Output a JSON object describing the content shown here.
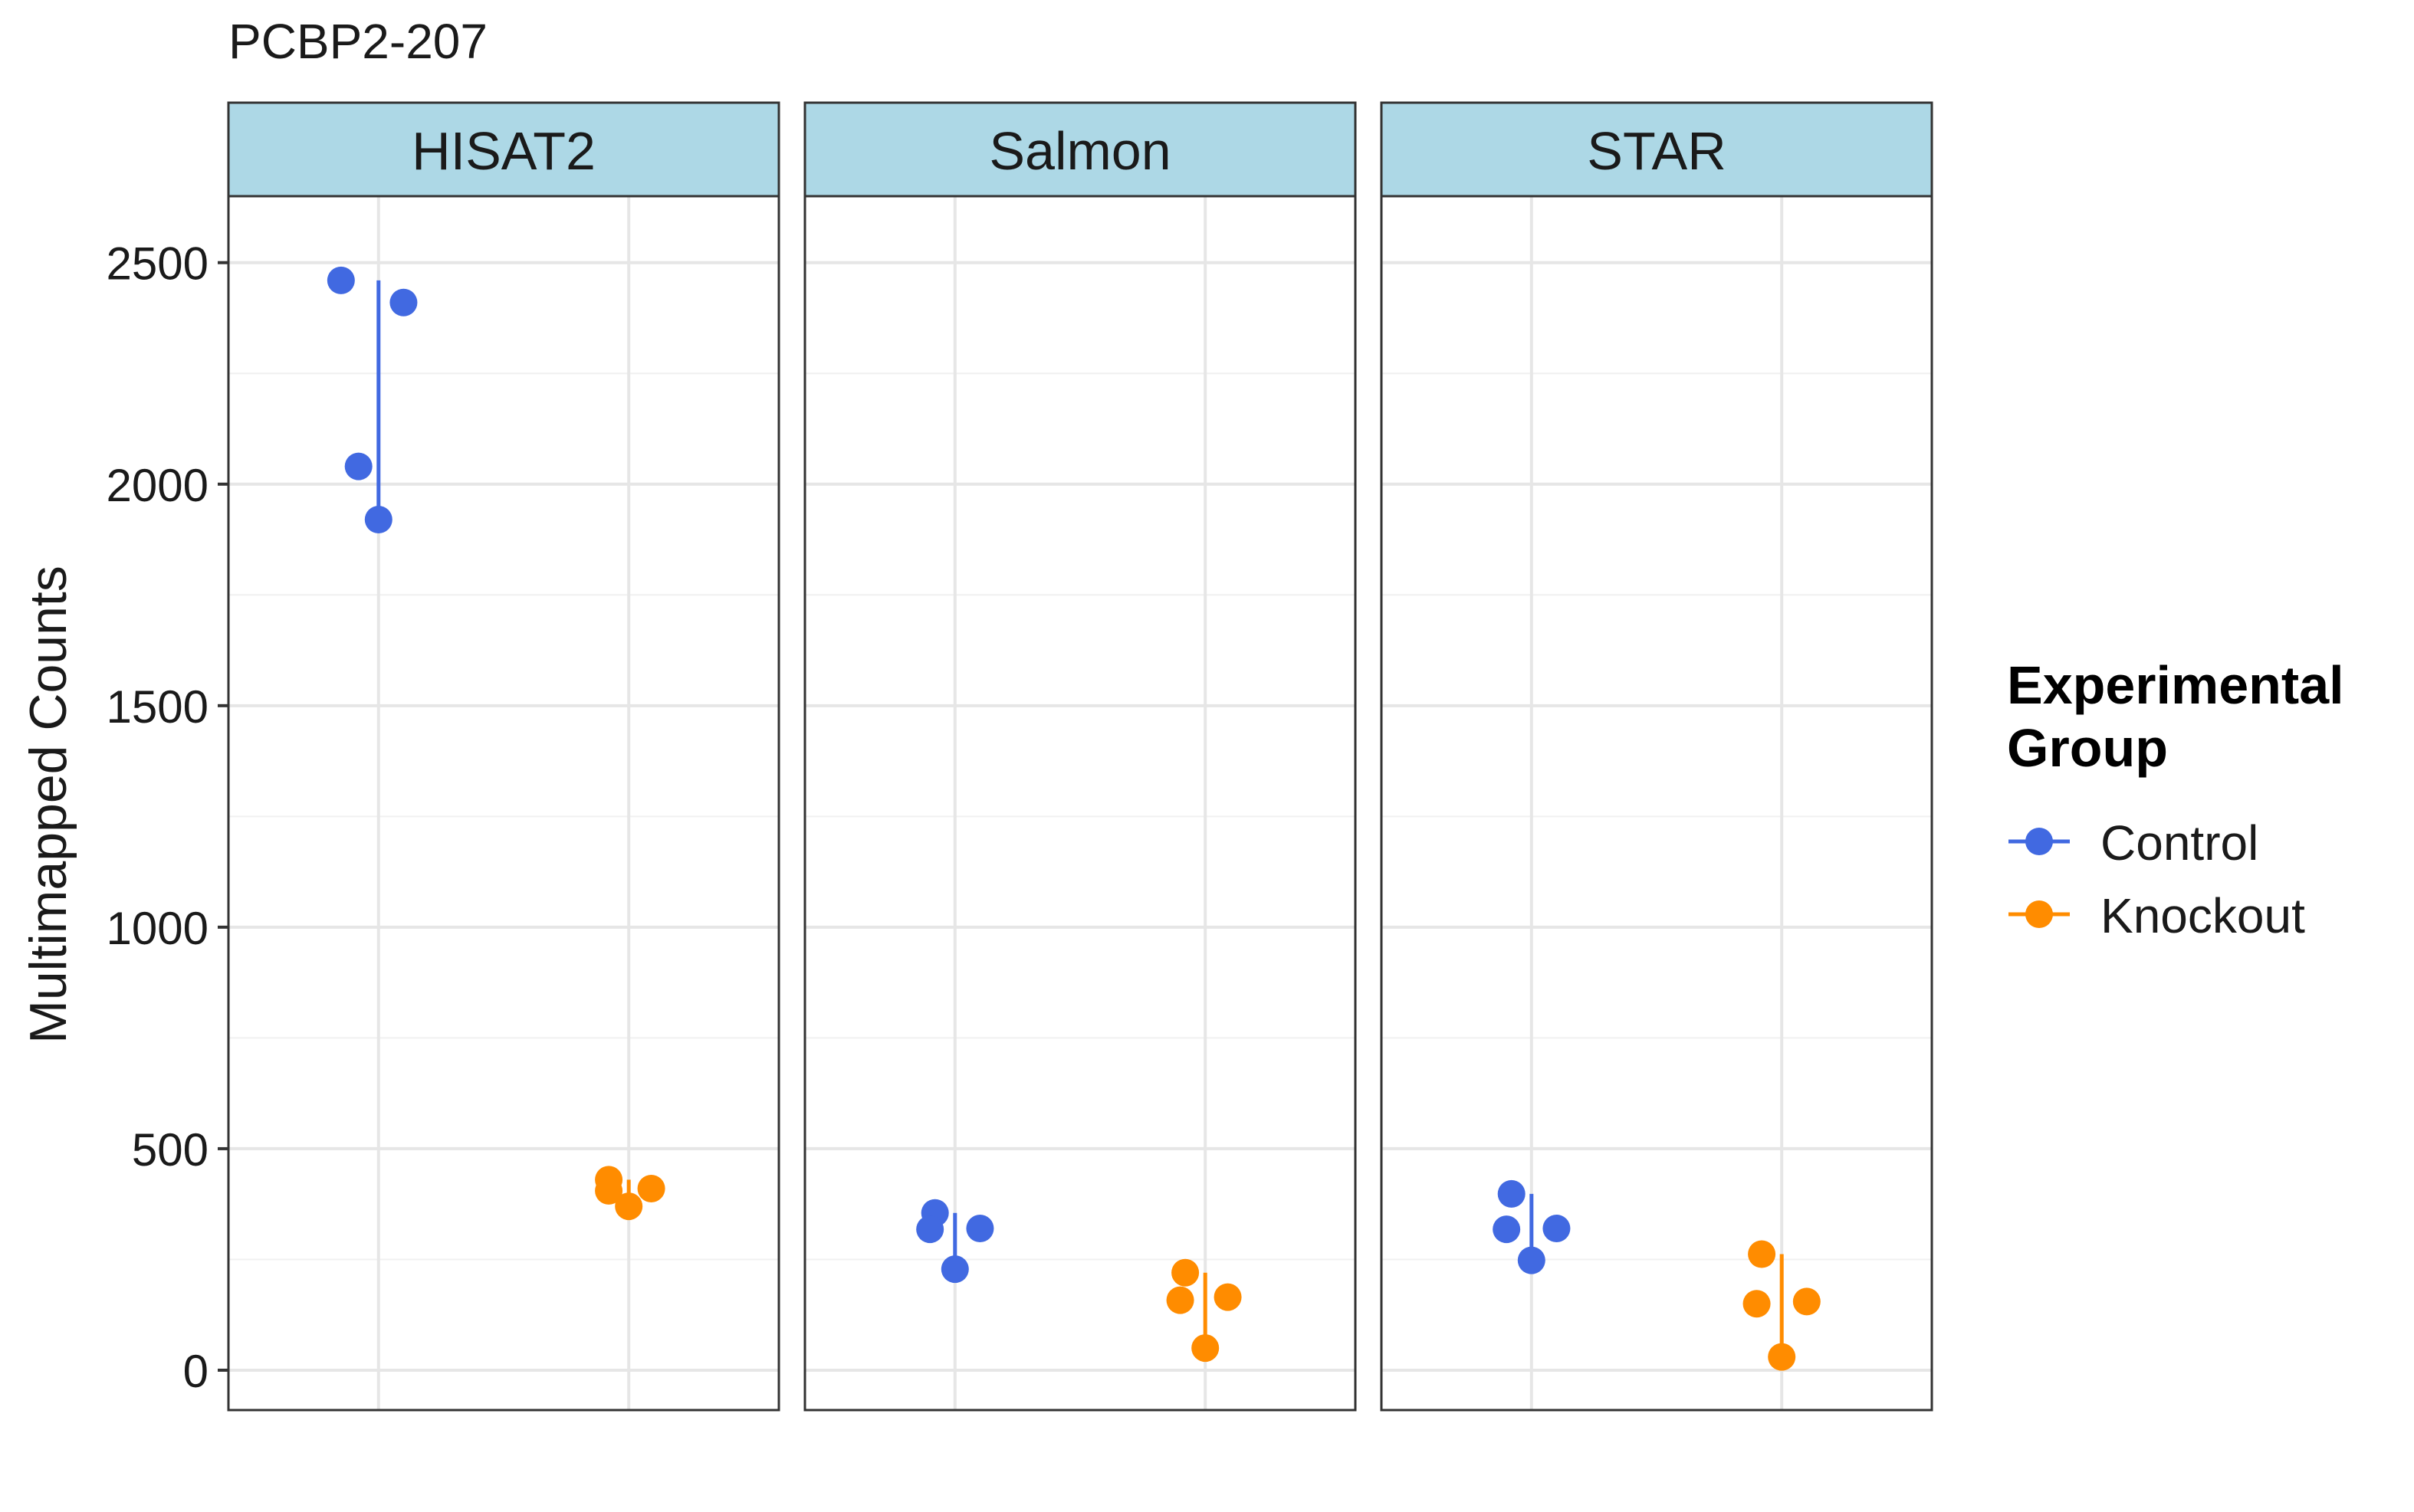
{
  "chart_data": {
    "type": "scatter",
    "title": "PCBP2-207",
    "ylabel": "Multimapped Counts",
    "xlabel": "",
    "ylim": [
      -90,
      2650
    ],
    "yticks": [
      0,
      500,
      1000,
      1500,
      2000,
      2500
    ],
    "grid": true,
    "legend": {
      "title_line1": "Experimental",
      "title_line2": "Group",
      "position": "right",
      "entries": [
        {
          "name": "Control",
          "color": "#4169E1"
        },
        {
          "name": "Knockout",
          "color": "#FF8C00"
        }
      ]
    },
    "groups": [
      "Control",
      "Knockout"
    ],
    "colors": {
      "Control": "#4169E1",
      "Knockout": "#FF8C00"
    },
    "panels": [
      {
        "name": "HISAT2",
        "points": {
          "Control": [
            {
              "x": -0.15,
              "y": 2460
            },
            {
              "x": 0.1,
              "y": 2410
            },
            {
              "x": -0.08,
              "y": 2040
            },
            {
              "x": 0.0,
              "y": 1920
            }
          ],
          "Knockout": [
            {
              "x": -0.08,
              "y": 430
            },
            {
              "x": -0.08,
              "y": 405
            },
            {
              "x": 0.09,
              "y": 410
            },
            {
              "x": 0.0,
              "y": 370
            }
          ]
        }
      },
      {
        "name": "Salmon",
        "points": {
          "Control": [
            {
              "x": -0.08,
              "y": 355
            },
            {
              "x": 0.1,
              "y": 320
            },
            {
              "x": -0.1,
              "y": 318
            },
            {
              "x": 0.0,
              "y": 228
            }
          ],
          "Knockout": [
            {
              "x": -0.08,
              "y": 220
            },
            {
              "x": 0.09,
              "y": 165
            },
            {
              "x": -0.1,
              "y": 158
            },
            {
              "x": 0.0,
              "y": 50
            }
          ]
        }
      },
      {
        "name": "STAR",
        "points": {
          "Control": [
            {
              "x": -0.08,
              "y": 398
            },
            {
              "x": 0.1,
              "y": 320
            },
            {
              "x": -0.1,
              "y": 318
            },
            {
              "x": 0.0,
              "y": 248
            }
          ],
          "Knockout": [
            {
              "x": -0.08,
              "y": 262
            },
            {
              "x": 0.1,
              "y": 155
            },
            {
              "x": -0.1,
              "y": 150
            },
            {
              "x": 0.0,
              "y": 30
            }
          ]
        }
      }
    ]
  }
}
